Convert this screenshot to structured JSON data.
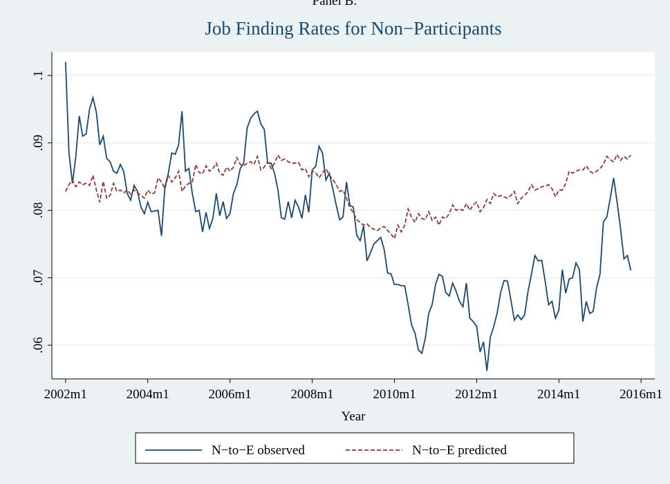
{
  "heading": "Panel B:",
  "chart_data": {
    "type": "line",
    "title": "Job Finding Rates for Non−Participants",
    "x_label": "Year",
    "x": [
      "2002m1",
      "2002m2",
      "2002m3",
      "2002m4",
      "2002m5",
      "2002m6",
      "2002m7",
      "2002m8",
      "2002m9",
      "2002m10",
      "2002m11",
      "2002m12",
      "2003m1",
      "2003m2",
      "2003m3",
      "2003m4",
      "2003m5",
      "2003m6",
      "2003m7",
      "2003m8",
      "2003m9",
      "2003m10",
      "2003m11",
      "2003m12",
      "2004m1",
      "2004m2",
      "2004m3",
      "2004m4",
      "2004m5",
      "2004m6",
      "2004m7",
      "2004m8",
      "2004m9",
      "2004m10",
      "2004m11",
      "2004m12",
      "2005m1",
      "2005m2",
      "2005m3",
      "2005m4",
      "2005m5",
      "2005m6",
      "2005m7",
      "2005m8",
      "2005m9",
      "2005m10",
      "2005m11",
      "2005m12",
      "2006m1",
      "2006m2",
      "2006m3",
      "2006m4",
      "2006m5",
      "2006m6",
      "2006m7",
      "2006m8",
      "2006m9",
      "2006m10",
      "2006m11",
      "2006m12",
      "2007m1",
      "2007m2",
      "2007m3",
      "2007m4",
      "2007m5",
      "2007m6",
      "2007m7",
      "2007m8",
      "2007m9",
      "2007m10",
      "2007m11",
      "2007m12",
      "2008m1",
      "2008m2",
      "2008m3",
      "2008m4",
      "2008m5",
      "2008m6",
      "2008m7",
      "2008m8",
      "2008m9",
      "2008m10",
      "2008m11",
      "2008m12",
      "2009m1",
      "2009m2",
      "2009m3",
      "2009m4",
      "2009m5",
      "2009m6",
      "2009m7",
      "2009m8",
      "2009m9",
      "2009m10",
      "2009m11",
      "2009m12",
      "2010m1",
      "2010m2",
      "2010m3",
      "2010m4",
      "2010m5",
      "2010m6",
      "2010m7",
      "2010m8",
      "2010m9",
      "2010m10",
      "2010m11",
      "2010m12",
      "2011m1",
      "2011m2",
      "2011m3",
      "2011m4",
      "2011m5",
      "2011m6",
      "2011m7",
      "2011m8",
      "2011m9",
      "2011m10",
      "2011m11",
      "2011m12",
      "2012m1",
      "2012m2",
      "2012m3",
      "2012m4",
      "2012m5",
      "2012m6",
      "2012m7",
      "2012m8",
      "2012m9",
      "2012m10",
      "2012m11",
      "2012m12",
      "2013m1",
      "2013m2",
      "2013m3",
      "2013m4",
      "2013m5",
      "2013m6",
      "2013m7",
      "2013m8",
      "2013m9",
      "2013m10",
      "2013m11",
      "2013m12",
      "2014m1",
      "2014m2",
      "2014m3",
      "2014m4",
      "2014m5",
      "2014m6",
      "2014m7",
      "2014m8",
      "2014m9",
      "2014m10",
      "2014m11",
      "2014m12",
      "2015m1",
      "2015m2",
      "2015m3",
      "2015m4",
      "2015m5",
      "2015m6",
      "2015m7",
      "2015m8",
      "2015m9",
      "2015m10"
    ],
    "series": [
      {
        "name": "N−to−E observed",
        "color": "#1a476f",
        "dash": false,
        "values": [
          0.102,
          0.0885,
          0.084,
          0.088,
          0.094,
          0.091,
          0.0913,
          0.095,
          0.0967,
          0.0945,
          0.0897,
          0.091,
          0.0877,
          0.0872,
          0.0858,
          0.0855,
          0.0868,
          0.0857,
          0.0825,
          0.0815,
          0.0837,
          0.0828,
          0.0805,
          0.0795,
          0.0812,
          0.0798,
          0.0799,
          0.08,
          0.0762,
          0.0835,
          0.0855,
          0.0885,
          0.0883,
          0.0897,
          0.0947,
          0.0858,
          0.0862,
          0.0825,
          0.0798,
          0.08,
          0.0768,
          0.0797,
          0.0773,
          0.0788,
          0.0825,
          0.0792,
          0.0813,
          0.0788,
          0.0795,
          0.0825,
          0.0838,
          0.0862,
          0.087,
          0.0922,
          0.0936,
          0.0943,
          0.0947,
          0.0928,
          0.092,
          0.087,
          0.087,
          0.0855,
          0.083,
          0.0789,
          0.0787,
          0.0813,
          0.0789,
          0.0815,
          0.0805,
          0.0788,
          0.0823,
          0.0797,
          0.086,
          0.0865,
          0.0895,
          0.0885,
          0.0845,
          0.0855,
          0.0832,
          0.0808,
          0.0786,
          0.079,
          0.0842,
          0.0807,
          0.0805,
          0.0763,
          0.0755,
          0.0777,
          0.0725,
          0.0737,
          0.075,
          0.0755,
          0.076,
          0.0742,
          0.0707,
          0.0706,
          0.069,
          0.069,
          0.0688,
          0.0688,
          0.066,
          0.063,
          0.0618,
          0.0593,
          0.0588,
          0.061,
          0.0647,
          0.066,
          0.069,
          0.0705,
          0.0702,
          0.0678,
          0.0673,
          0.0692,
          0.068,
          0.0665,
          0.0657,
          0.0692,
          0.064,
          0.0635,
          0.0628,
          0.059,
          0.0605,
          0.0562,
          0.0612,
          0.0628,
          0.0648,
          0.0678,
          0.0696,
          0.0695,
          0.0667,
          0.0637,
          0.0645,
          0.0638,
          0.0645,
          0.068,
          0.0705,
          0.0733,
          0.0725,
          0.0726,
          0.0695,
          0.066,
          0.0665,
          0.064,
          0.0652,
          0.0712,
          0.0677,
          0.0698,
          0.07,
          0.0722,
          0.0712,
          0.0635,
          0.0665,
          0.0647,
          0.065,
          0.0685,
          0.0705,
          0.0783,
          0.079,
          0.0818,
          0.0848,
          0.0812,
          0.0773,
          0.0728,
          0.0733,
          0.0711
        ]
      },
      {
        "name": "N−to−E predicted",
        "color": "#90353b",
        "dash": true,
        "values": [
          0.0828,
          0.0838,
          0.0845,
          0.0835,
          0.0842,
          0.0838,
          0.084,
          0.0837,
          0.0852,
          0.083,
          0.0812,
          0.0843,
          0.0818,
          0.0822,
          0.084,
          0.0828,
          0.083,
          0.0826,
          0.083,
          0.0824,
          0.083,
          0.0826,
          0.0822,
          0.0818,
          0.083,
          0.0824,
          0.0826,
          0.0848,
          0.0842,
          0.0832,
          0.0852,
          0.0842,
          0.0848,
          0.0858,
          0.0828,
          0.0836,
          0.084,
          0.0842,
          0.0868,
          0.0856,
          0.0854,
          0.0866,
          0.0858,
          0.0862,
          0.087,
          0.0855,
          0.0852,
          0.0864,
          0.0858,
          0.0864,
          0.0878,
          0.0868,
          0.0866,
          0.087,
          0.0872,
          0.0868,
          0.088,
          0.086,
          0.0864,
          0.0872,
          0.0862,
          0.087,
          0.0882,
          0.0874,
          0.0876,
          0.0872,
          0.087,
          0.087,
          0.0871,
          0.086,
          0.0862,
          0.085,
          0.0858,
          0.0856,
          0.0848,
          0.0856,
          0.0862,
          0.0852,
          0.0846,
          0.0838,
          0.0828,
          0.083,
          0.0818,
          0.0804,
          0.0796,
          0.0786,
          0.0782,
          0.0778,
          0.078,
          0.0774,
          0.0772,
          0.077,
          0.0774,
          0.0776,
          0.077,
          0.0765,
          0.0758,
          0.0778,
          0.0768,
          0.0778,
          0.0802,
          0.079,
          0.0782,
          0.0795,
          0.0788,
          0.0786,
          0.0798,
          0.0785,
          0.079,
          0.0778,
          0.079,
          0.0788,
          0.0795,
          0.0808,
          0.08,
          0.0802,
          0.08,
          0.081,
          0.08,
          0.0808,
          0.0812,
          0.0798,
          0.0804,
          0.0816,
          0.081,
          0.0825,
          0.082,
          0.0822,
          0.082,
          0.0818,
          0.0822,
          0.0828,
          0.081,
          0.0818,
          0.0822,
          0.0828,
          0.0838,
          0.083,
          0.0832,
          0.0835,
          0.0836,
          0.0838,
          0.0832,
          0.082,
          0.083,
          0.083,
          0.084,
          0.0858,
          0.0855,
          0.0858,
          0.086,
          0.086,
          0.0866,
          0.0858,
          0.0855,
          0.0858,
          0.0862,
          0.0868,
          0.088,
          0.0875,
          0.0872,
          0.0883,
          0.0874,
          0.088,
          0.0876,
          0.0882
        ]
      }
    ],
    "xlim": [
      "2001m9",
      "2016m5"
    ],
    "xticks": [
      "2002m1",
      "2004m1",
      "2006m1",
      "2008m1",
      "2010m1",
      "2012m1",
      "2014m1",
      "2016m1"
    ],
    "ylim": [
      0.055,
      0.1035
    ],
    "yticks": [
      {
        "value": 0.06,
        "label": ".06"
      },
      {
        "value": 0.07,
        "label": ".07"
      },
      {
        "value": 0.08,
        "label": ".08"
      },
      {
        "value": 0.09,
        "label": ".09"
      },
      {
        "value": 0.1,
        "label": ".1"
      }
    ],
    "grid": true
  }
}
